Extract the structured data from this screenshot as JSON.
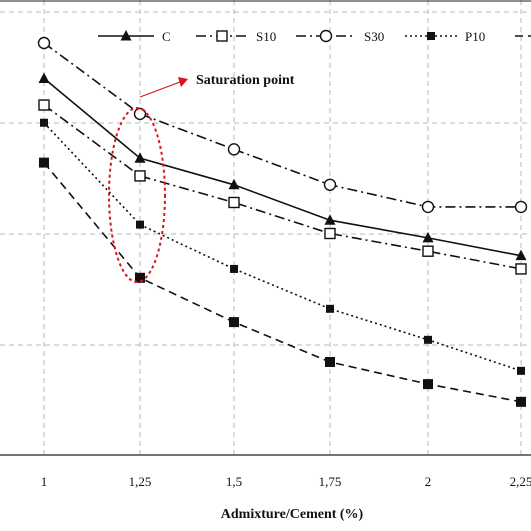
{
  "chart_data": {
    "type": "line",
    "xlabel": "Admixture/Cement (%)",
    "x_tick_labels": [
      "1",
      "1,25",
      "1,5",
      "1,75",
      "2",
      "2,25"
    ],
    "x": [
      1,
      1.25,
      1.5,
      1.75,
      2,
      2.25
    ],
    "ylim": [
      0,
      5
    ],
    "grid": true,
    "legend_placement": "top-right",
    "annotation": "Saturation point",
    "annotation_color": "#d9141c",
    "series": [
      {
        "name": "C",
        "marker": "filled-triangle",
        "line": "solid",
        "values": [
          4.25,
          3.35,
          3.05,
          2.65,
          2.45,
          2.25
        ]
      },
      {
        "name": "S10",
        "marker": "open-square",
        "line": "dash-dot",
        "values": [
          3.95,
          3.15,
          2.85,
          2.5,
          2.3,
          2.1
        ]
      },
      {
        "name": "S30",
        "marker": "open-circle",
        "line": "dash-dot",
        "values": [
          4.65,
          3.85,
          3.45,
          3.05,
          2.8,
          2.8
        ]
      },
      {
        "name": "P10",
        "marker": "filled-square",
        "line": "dotted",
        "values": [
          3.75,
          2.6,
          2.1,
          1.65,
          1.3,
          0.95
        ]
      },
      {
        "name": "",
        "marker": "filled-square",
        "line": "dashed",
        "values": [
          3.3,
          2.0,
          1.5,
          1.05,
          0.8,
          0.6
        ]
      }
    ]
  }
}
